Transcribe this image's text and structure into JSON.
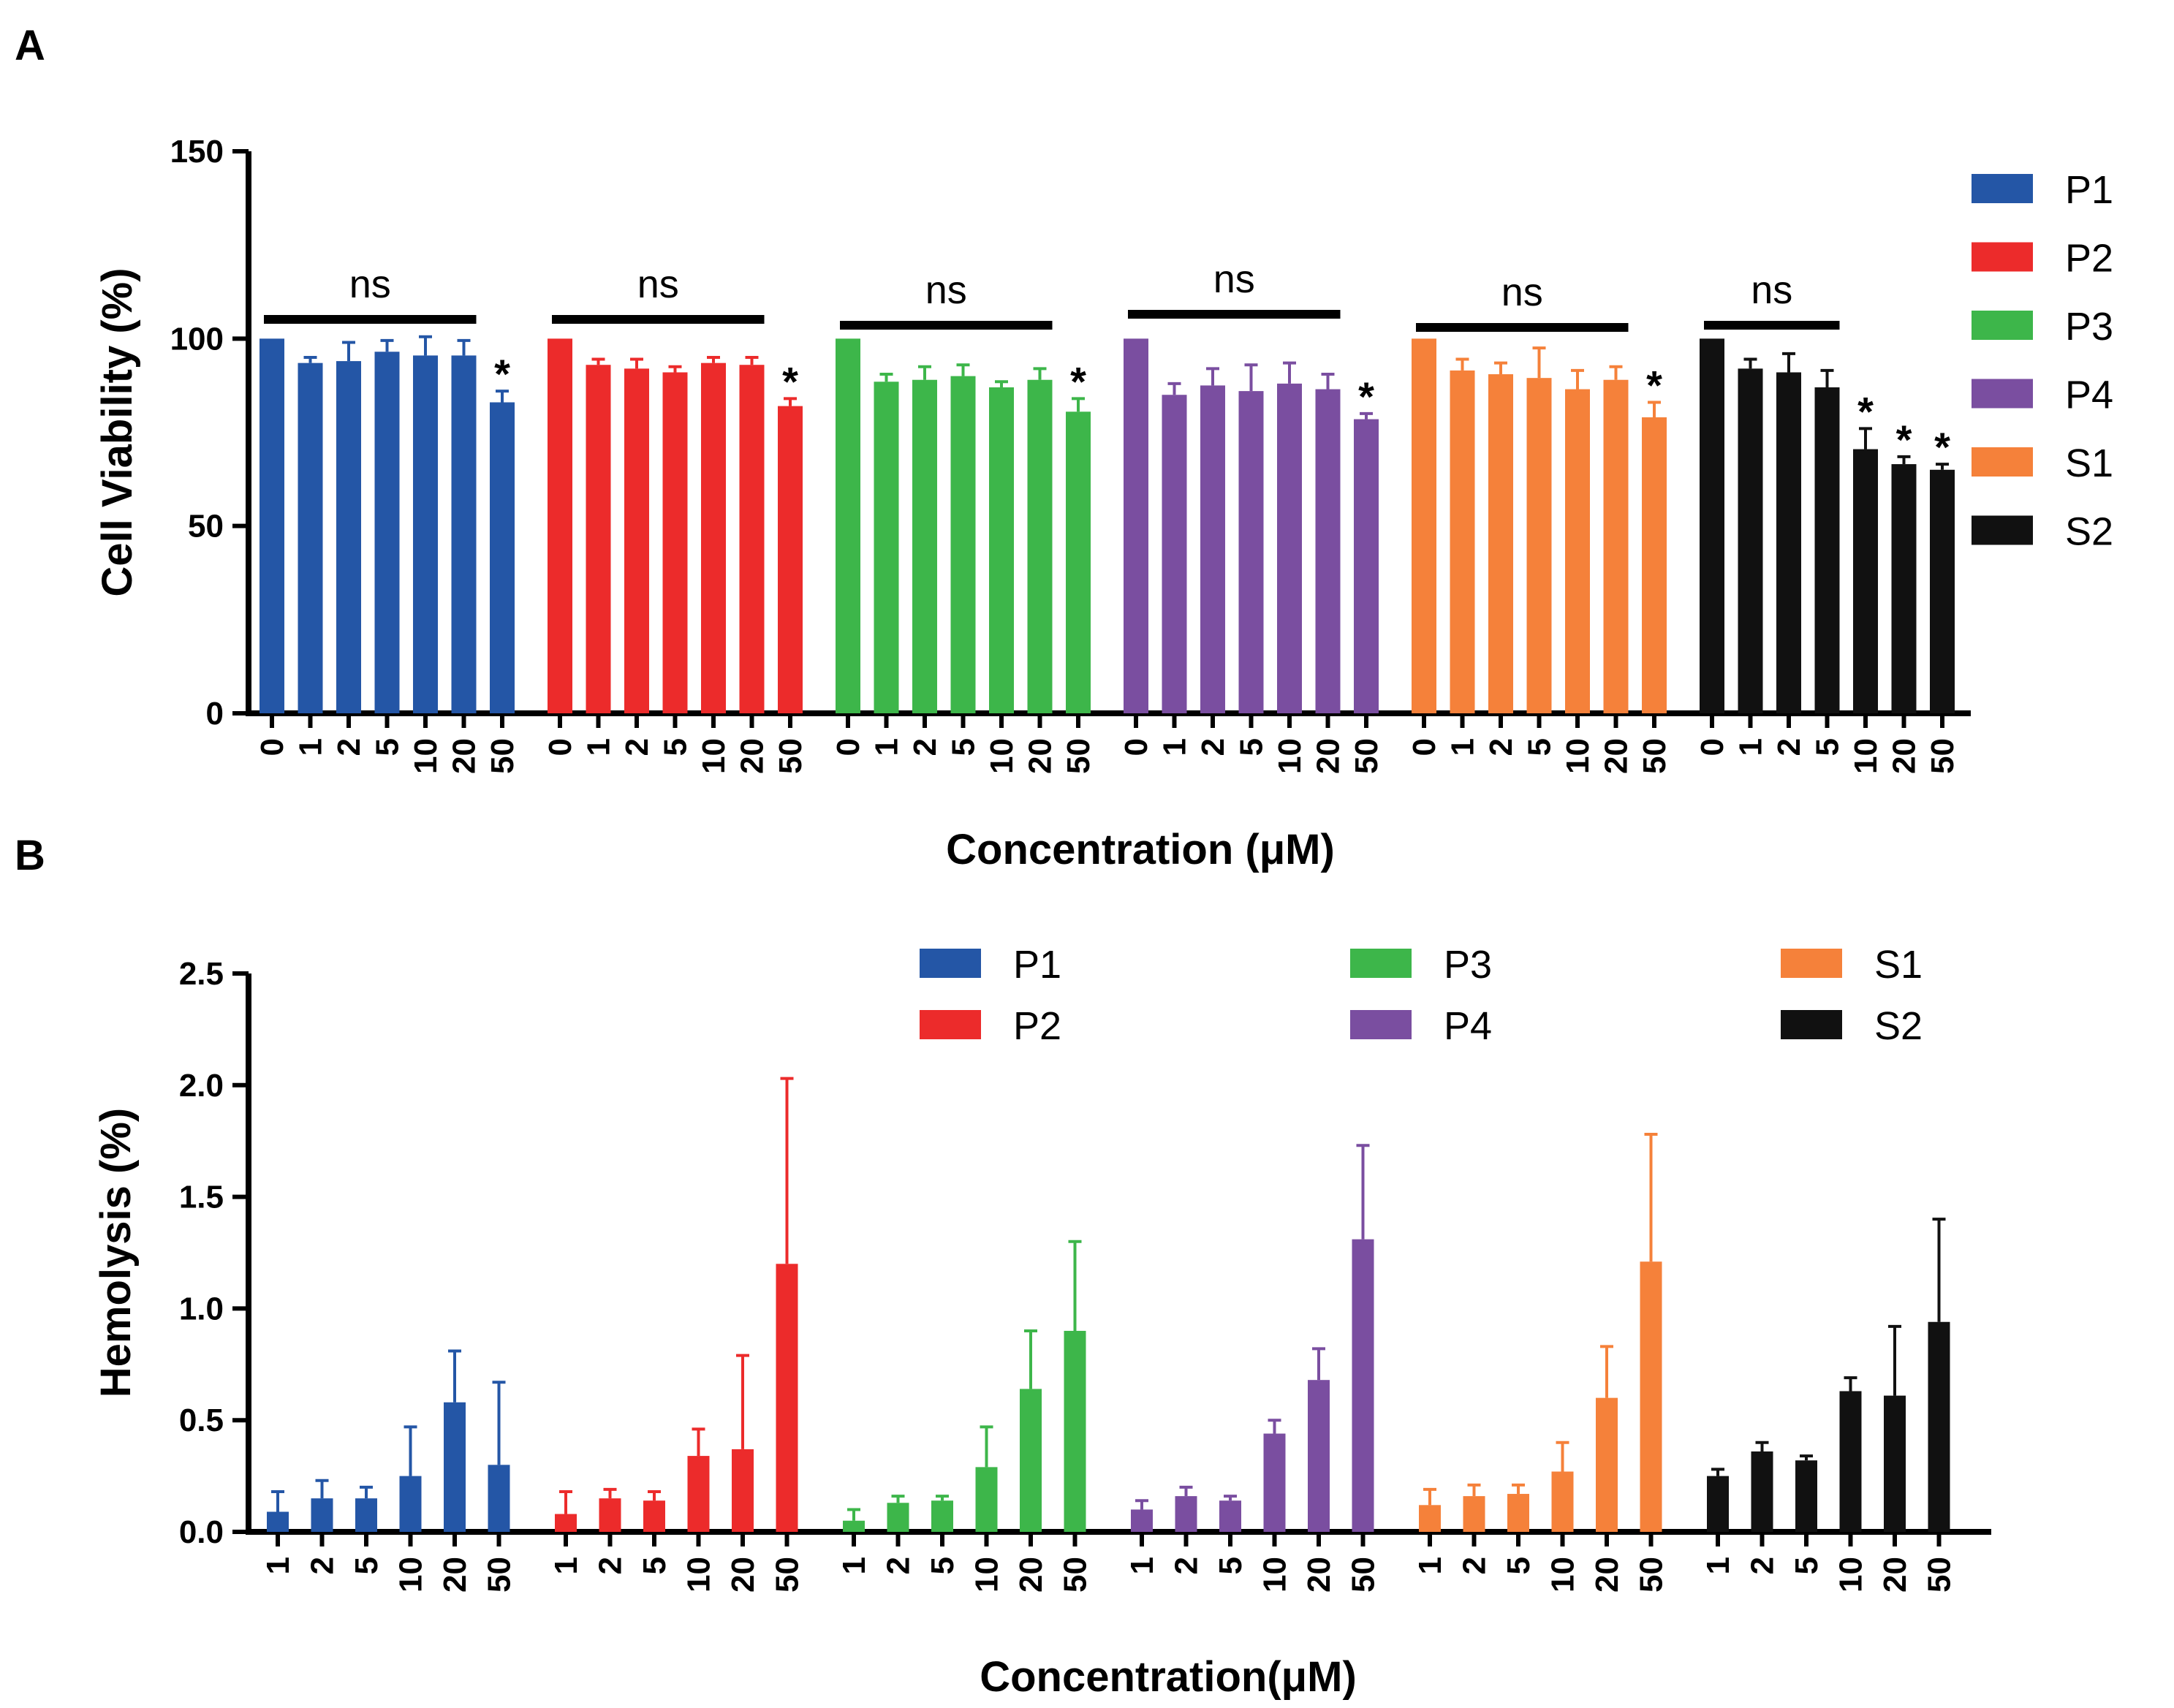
{
  "panels": {
    "a_label": "A",
    "b_label": "B"
  },
  "colors": {
    "P1": "#2456a6",
    "P2": "#ec2b2b",
    "P3": "#3db64a",
    "P4": "#7a4ea0",
    "S1": "#f5813a",
    "S2": "#111111"
  },
  "chart_data": [
    {
      "type": "bar",
      "panel": "A",
      "title": "",
      "ylabel": "Cell Viability (%)",
      "xlabel": "Concentration (μM)",
      "ylim": [
        0,
        150
      ],
      "yticks": [
        "0",
        "50",
        "100",
        "150"
      ],
      "legend_placement": "right",
      "groups": [
        {
          "name": "P1",
          "categories": [
            "0",
            "1",
            "2",
            "5",
            "10",
            "20",
            "50"
          ],
          "values": [
            100,
            93.5,
            94,
            96.5,
            95.5,
            95.5,
            83
          ],
          "errors": [
            0,
            1.5,
            5,
            3,
            5,
            4,
            3
          ],
          "stars": [
            false,
            false,
            false,
            false,
            false,
            false,
            true
          ],
          "sig_label": "ns",
          "sig_span": [
            0,
            5
          ]
        },
        {
          "name": "P2",
          "categories": [
            "0",
            "1",
            "2",
            "5",
            "10",
            "20",
            "50"
          ],
          "values": [
            100,
            93,
            92,
            91,
            93.5,
            93,
            82
          ],
          "errors": [
            0,
            1.5,
            2.5,
            1.5,
            1.5,
            2,
            2
          ],
          "stars": [
            false,
            false,
            false,
            false,
            false,
            false,
            true
          ],
          "sig_label": "ns",
          "sig_span": [
            0,
            5
          ]
        },
        {
          "name": "P3",
          "categories": [
            "0",
            "1",
            "2",
            "5",
            "10",
            "20",
            "50"
          ],
          "values": [
            100,
            88.5,
            89,
            90,
            87,
            89,
            80.5
          ],
          "errors": [
            0,
            2,
            3.5,
            3,
            1.5,
            3,
            3.5
          ],
          "stars": [
            false,
            false,
            false,
            false,
            false,
            false,
            true
          ],
          "sig_label": "ns",
          "sig_span": [
            0,
            5
          ]
        },
        {
          "name": "P4",
          "categories": [
            "0",
            "1",
            "2",
            "5",
            "10",
            "20",
            "50"
          ],
          "values": [
            100,
            85,
            87.5,
            86,
            88,
            86.5,
            78.5
          ],
          "errors": [
            0,
            3,
            4.5,
            7,
            5.5,
            4,
            1.5
          ],
          "stars": [
            false,
            false,
            false,
            false,
            false,
            false,
            true
          ],
          "sig_label": "ns",
          "sig_span": [
            0,
            5
          ]
        },
        {
          "name": "S1",
          "categories": [
            "0",
            "1",
            "2",
            "5",
            "10",
            "20",
            "50"
          ],
          "values": [
            100,
            91.5,
            90.5,
            89.5,
            86.5,
            89,
            79
          ],
          "errors": [
            0,
            3,
            3,
            8,
            5,
            3.5,
            4
          ],
          "stars": [
            false,
            false,
            false,
            false,
            false,
            false,
            true
          ],
          "sig_label": "ns",
          "sig_span": [
            0,
            5
          ]
        },
        {
          "name": "S2",
          "categories": [
            "0",
            "1",
            "2",
            "5",
            "10",
            "20",
            "50"
          ],
          "values": [
            100,
            92,
            91,
            87,
            70.5,
            66.5,
            65
          ],
          "errors": [
            0,
            2.5,
            5,
            4.5,
            5.5,
            2,
            1.5
          ],
          "stars": [
            false,
            false,
            false,
            false,
            true,
            true,
            true
          ],
          "sig_label": "ns",
          "sig_span": [
            0,
            3
          ]
        }
      ]
    },
    {
      "type": "bar",
      "panel": "B",
      "title": "",
      "ylabel": "Hemolysis (%)",
      "xlabel": "Concentration(μM)",
      "ylim": [
        0,
        2.5
      ],
      "yticks": [
        "0.0",
        "0.5",
        "1.0",
        "1.5",
        "2.0",
        "2.5"
      ],
      "legend_placement": "top-center",
      "groups": [
        {
          "name": "P1",
          "categories": [
            "1",
            "2",
            "5",
            "10",
            "20",
            "50"
          ],
          "values": [
            0.09,
            0.15,
            0.15,
            0.25,
            0.58,
            0.3
          ],
          "errors": [
            0.09,
            0.08,
            0.05,
            0.22,
            0.23,
            0.37
          ]
        },
        {
          "name": "P2",
          "categories": [
            "1",
            "2",
            "5",
            "10",
            "20",
            "50"
          ],
          "values": [
            0.08,
            0.15,
            0.14,
            0.34,
            0.37,
            1.2
          ],
          "errors": [
            0.1,
            0.04,
            0.04,
            0.12,
            0.42,
            0.83
          ]
        },
        {
          "name": "P3",
          "categories": [
            "1",
            "2",
            "5",
            "10",
            "20",
            "50"
          ],
          "values": [
            0.05,
            0.13,
            0.14,
            0.29,
            0.64,
            0.9
          ],
          "errors": [
            0.05,
            0.03,
            0.02,
            0.18,
            0.26,
            0.4
          ]
        },
        {
          "name": "P4",
          "categories": [
            "1",
            "2",
            "5",
            "10",
            "20",
            "50"
          ],
          "values": [
            0.1,
            0.16,
            0.14,
            0.44,
            0.68,
            1.31
          ],
          "errors": [
            0.04,
            0.04,
            0.02,
            0.06,
            0.14,
            0.42
          ]
        },
        {
          "name": "S1",
          "categories": [
            "1",
            "2",
            "5",
            "10",
            "20",
            "50"
          ],
          "values": [
            0.12,
            0.16,
            0.17,
            0.27,
            0.6,
            1.21
          ],
          "errors": [
            0.07,
            0.05,
            0.04,
            0.13,
            0.23,
            0.57
          ]
        },
        {
          "name": "S2",
          "categories": [
            "1",
            "2",
            "5",
            "10",
            "20",
            "50"
          ],
          "values": [
            0.25,
            0.36,
            0.32,
            0.63,
            0.61,
            0.94
          ],
          "errors": [
            0.03,
            0.04,
            0.02,
            0.06,
            0.31,
            0.46
          ]
        }
      ]
    }
  ]
}
